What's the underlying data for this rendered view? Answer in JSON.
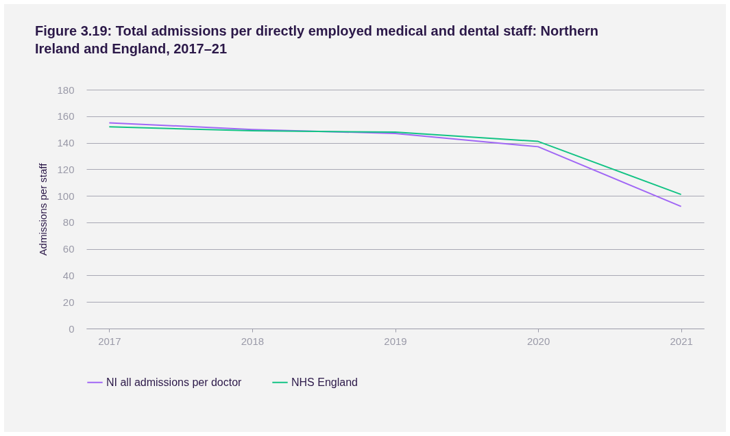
{
  "chart_data": {
    "type": "line",
    "title": "Figure 3.19: Total admissions per directly employed medical and dental staff: Northern Ireland and England, 2017–21",
    "ylabel": "Admissions per staff",
    "categories": [
      "2017",
      "2018",
      "2019",
      "2020",
      "2021"
    ],
    "series": [
      {
        "name": "NI all admissions per doctor",
        "color": "#a066f5",
        "values": [
          155,
          150,
          147,
          137,
          92
        ]
      },
      {
        "name": "NHS England",
        "color": "#12c384",
        "values": [
          152,
          149,
          148,
          141,
          101
        ]
      }
    ],
    "ylim": [
      0,
      180
    ],
    "yticks": [
      0,
      20,
      40,
      60,
      80,
      100,
      120,
      140,
      160,
      180
    ],
    "grid": "y",
    "legend": "bottom",
    "marker": "none",
    "line_style": "solid"
  }
}
